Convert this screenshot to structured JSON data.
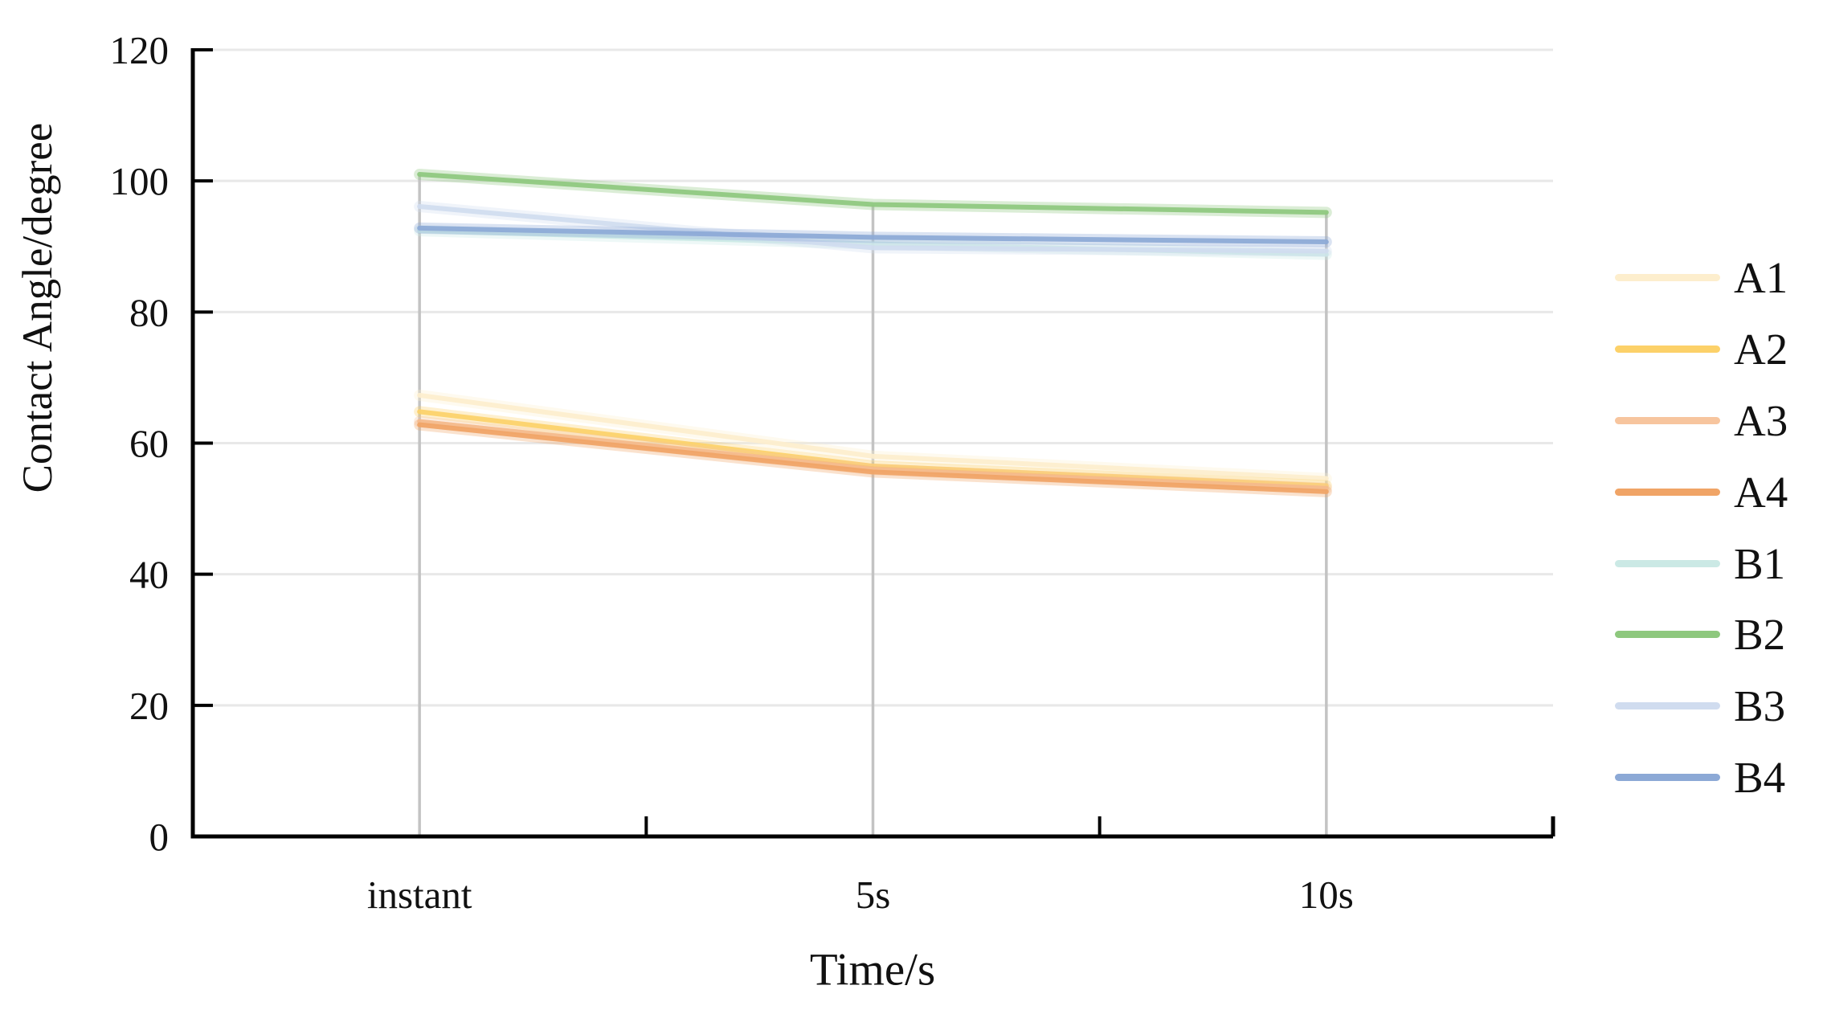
{
  "chart_data": {
    "type": "line",
    "title": "",
    "xlabel": "Time/s",
    "ylabel": "Contact Angle/degree",
    "categories": [
      "instant",
      "5s",
      "10s"
    ],
    "series": [
      {
        "name": "A1",
        "color": "#fdeecd",
        "values": [
          67.3,
          58.0,
          54.6
        ]
      },
      {
        "name": "A2",
        "color": "#fcd169",
        "values": [
          64.8,
          56.5,
          53.5
        ]
      },
      {
        "name": "A3",
        "color": "#f7c59e",
        "values": [
          63.3,
          56.0,
          53.1
        ]
      },
      {
        "name": "A4",
        "color": "#f0a466",
        "values": [
          62.8,
          55.6,
          52.6
        ]
      },
      {
        "name": "B1",
        "color": "#cbe9e5",
        "values": [
          92.4,
          90.4,
          88.8
        ]
      },
      {
        "name": "B2",
        "color": "#8ec87e",
        "values": [
          101.0,
          96.4,
          95.2
        ]
      },
      {
        "name": "B3",
        "color": "#d0dcef",
        "values": [
          96.1,
          89.8,
          89.3
        ]
      },
      {
        "name": "B4",
        "color": "#8ca9d6",
        "values": [
          92.8,
          91.4,
          90.7
        ]
      }
    ],
    "ylim": [
      0,
      120
    ],
    "yticks": [
      0,
      20,
      40,
      60,
      80,
      100,
      120
    ],
    "legend_position": "right",
    "grid": {
      "horizontal_gridlines": true,
      "gridline_color": "#e8e8e8",
      "drop_lines_at_categories": true,
      "drop_line_color": "#c3c3c3",
      "axis_color": "#000000"
    }
  }
}
